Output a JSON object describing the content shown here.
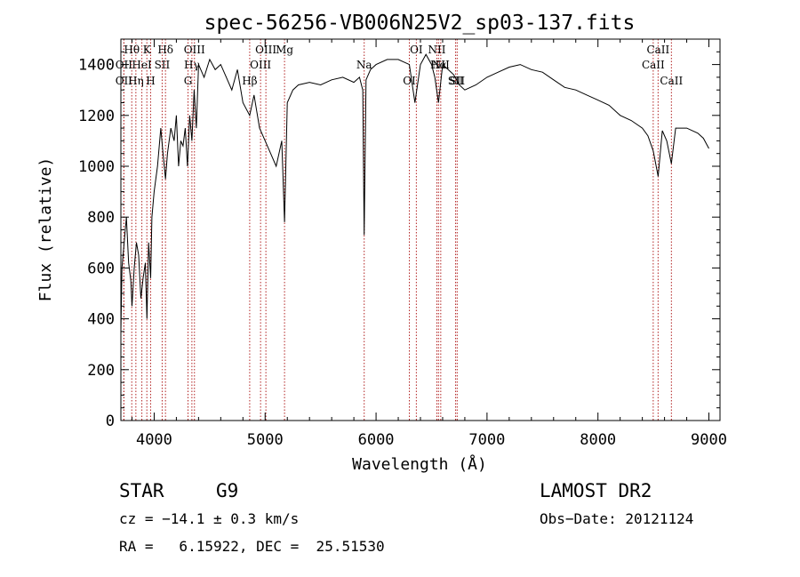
{
  "chart_data": {
    "type": "line",
    "title": "spec-56256-VB006N25V2_sp03-137.fits",
    "xlabel": "Wavelength (Å)",
    "ylabel": "Flux (relative)",
    "xlim": [
      3700,
      9100
    ],
    "ylim": [
      0,
      1500
    ],
    "x_ticks": [
      4000,
      5000,
      6000,
      7000,
      8000,
      9000
    ],
    "y_ticks": [
      0,
      200,
      400,
      600,
      800,
      1000,
      1200,
      1400
    ],
    "grid": false,
    "series": [
      {
        "x": [
          3700,
          3710,
          3730,
          3750,
          3770,
          3790,
          3800,
          3820,
          3840,
          3860,
          3880,
          3900,
          3920,
          3935,
          3950,
          3968,
          3980,
          4000,
          4030,
          4060,
          4080,
          4102,
          4120,
          4150,
          4180,
          4200,
          4220,
          4240,
          4260,
          4280,
          4300,
          4320,
          4340,
          4360,
          4380,
          4400,
          4450,
          4500,
          4550,
          4600,
          4650,
          4700,
          4750,
          4800,
          4861,
          4900,
          4950,
          5000,
          5050,
          5100,
          5150,
          5175,
          5200,
          5250,
          5300,
          5400,
          5500,
          5600,
          5700,
          5800,
          5850,
          5880,
          5893,
          5910,
          5950,
          6000,
          6100,
          6200,
          6300,
          6350,
          6400,
          6450,
          6500,
          6530,
          6563,
          6600,
          6650,
          6700,
          6750,
          6800,
          6900,
          7000,
          7100,
          7200,
          7300,
          7400,
          7500,
          7600,
          7700,
          7800,
          7900,
          8000,
          8100,
          8200,
          8300,
          8400,
          8450,
          8498,
          8542,
          8580,
          8620,
          8662,
          8700,
          8800,
          8900,
          8950,
          9000
        ],
        "values": [
          350,
          600,
          700,
          800,
          620,
          550,
          450,
          600,
          700,
          650,
          480,
          560,
          620,
          400,
          700,
          560,
          800,
          900,
          1000,
          1150,
          1050,
          950,
          1050,
          1150,
          1100,
          1200,
          1000,
          1100,
          1080,
          1150,
          1000,
          1200,
          1100,
          1300,
          1150,
          1400,
          1350,
          1420,
          1380,
          1400,
          1350,
          1300,
          1380,
          1250,
          1200,
          1280,
          1150,
          1100,
          1050,
          1000,
          1100,
          780,
          1250,
          1300,
          1320,
          1330,
          1320,
          1340,
          1350,
          1330,
          1350,
          1300,
          730,
          1340,
          1380,
          1400,
          1420,
          1420,
          1400,
          1250,
          1400,
          1440,
          1400,
          1350,
          1250,
          1400,
          1380,
          1360,
          1320,
          1300,
          1320,
          1350,
          1370,
          1390,
          1400,
          1380,
          1370,
          1340,
          1310,
          1300,
          1280,
          1260,
          1240,
          1200,
          1180,
          1150,
          1120,
          1060,
          960,
          1140,
          1100,
          1010,
          1150,
          1150,
          1130,
          1110,
          1070
        ]
      }
    ],
    "line_markers": [
      {
        "label": "Hθ",
        "wavelength": 3798
      },
      {
        "label": "OII",
        "wavelength": 3727
      },
      {
        "label": "OII",
        "wavelength": 3727
      },
      {
        "label": "K",
        "wavelength": 3934
      },
      {
        "label": "HeI",
        "wavelength": 3889
      },
      {
        "label": "Hη",
        "wavelength": 3835
      },
      {
        "label": "Hδ",
        "wavelength": 4102
      },
      {
        "label": "SII",
        "wavelength": 4072
      },
      {
        "label": "H",
        "wavelength": 3968
      },
      {
        "label": "OIII",
        "wavelength": 4363
      },
      {
        "label": "Hγ",
        "wavelength": 4340
      },
      {
        "label": "G",
        "wavelength": 4305
      },
      {
        "label": "OIII",
        "wavelength": 5007
      },
      {
        "label": "OIII",
        "wavelength": 4959
      },
      {
        "label": "Hβ",
        "wavelength": 4861
      },
      {
        "label": "Mg",
        "wavelength": 5175
      },
      {
        "label": "Na",
        "wavelength": 5893
      },
      {
        "label": "OI",
        "wavelength": 6300
      },
      {
        "label": "OI",
        "wavelength": 6363
      },
      {
        "label": "Hα",
        "wavelength": 6563
      },
      {
        "label": "SII",
        "wavelength": 6717
      },
      {
        "label": "NII",
        "wavelength": 6548
      },
      {
        "label": "NII",
        "wavelength": 6583
      },
      {
        "label": "SII",
        "wavelength": 6731
      },
      {
        "label": "CaII",
        "wavelength": 8542
      },
      {
        "label": "CaII",
        "wavelength": 8498
      },
      {
        "label": "CaII",
        "wavelength": 8662
      }
    ]
  },
  "info": {
    "object_class": "STAR",
    "subclass": "G9",
    "survey": "LAMOST DR2",
    "redshift": "cz = −14.1 ± 0.3 km/s",
    "obs_date": "Obs−Date: 20121124",
    "coords": "RA =   6.15922, DEC =  25.51530"
  },
  "colors": {
    "spectrum": "#000000",
    "marker_lines": "#b22222"
  }
}
